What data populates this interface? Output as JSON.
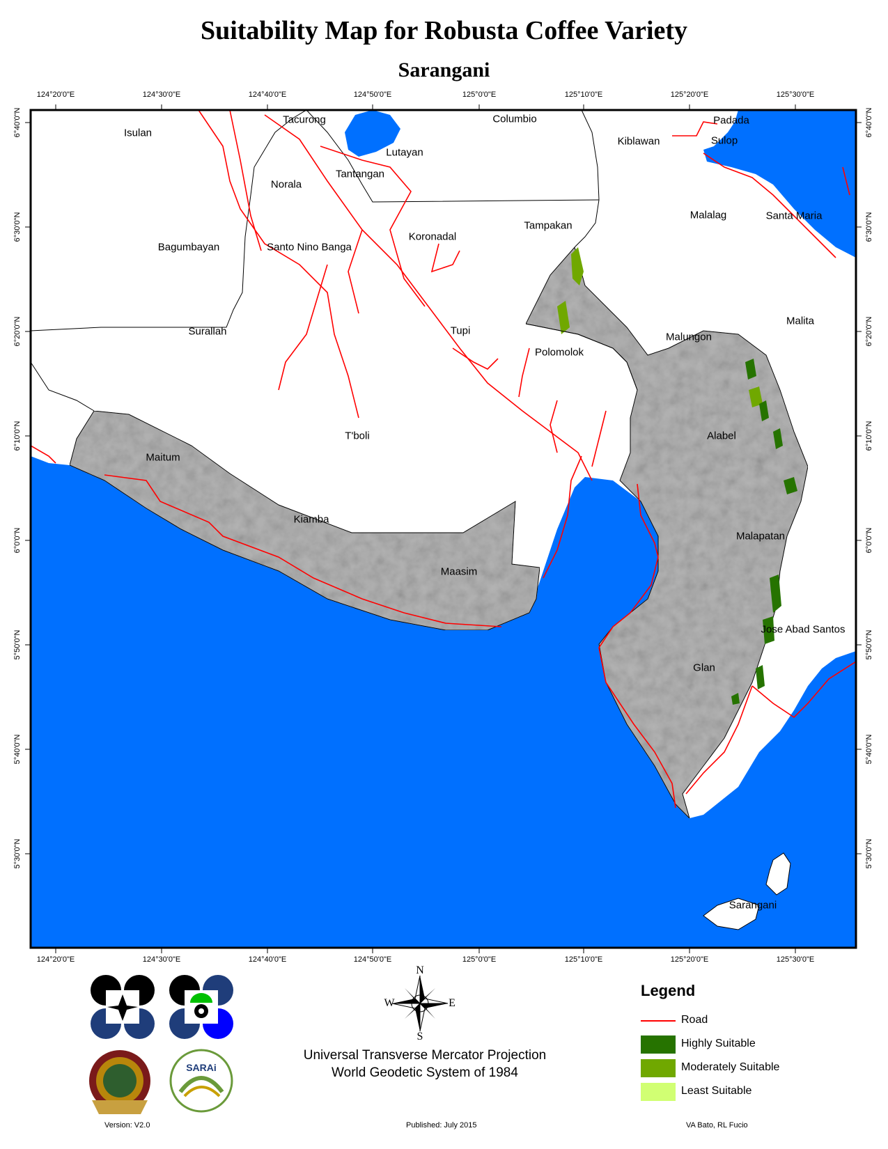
{
  "title": "Suitability Map for Robusta Coffee Variety",
  "subtitle": "Sarangani",
  "grid": {
    "longitudes": [
      "124°20'0\"E",
      "124°30'0\"E",
      "124°40'0\"E",
      "124°50'0\"E",
      "125°0'0\"E",
      "125°10'0\"E",
      "125°20'0\"E",
      "125°30'0\"E"
    ],
    "latitudes": [
      "6°40'0\"N",
      "6°30'0\"N",
      "6°20'0\"N",
      "6°10'0\"N",
      "6°0'0\"N",
      "5°50'0\"N",
      "5°40'0\"N",
      "5°30'0\"N"
    ]
  },
  "places": [
    {
      "name": "Tacurong"
    },
    {
      "name": "Columbio"
    },
    {
      "name": "Padada"
    },
    {
      "name": "Isulan"
    },
    {
      "name": "Kiblawan"
    },
    {
      "name": "Sulop"
    },
    {
      "name": "Lutayan"
    },
    {
      "name": "Tantangan"
    },
    {
      "name": "Norala"
    },
    {
      "name": "Malalag"
    },
    {
      "name": "Santa Maria"
    },
    {
      "name": "Tampakan"
    },
    {
      "name": "Koronadal"
    },
    {
      "name": "Bagumbayan"
    },
    {
      "name": "Santo Nino Banga"
    },
    {
      "name": "Malita"
    },
    {
      "name": "Surallah"
    },
    {
      "name": "Tupi"
    },
    {
      "name": "Malungon"
    },
    {
      "name": "Polomolok"
    },
    {
      "name": "T'boli"
    },
    {
      "name": "Alabel"
    },
    {
      "name": "Maitum"
    },
    {
      "name": "Kiamba"
    },
    {
      "name": "Malapatan"
    },
    {
      "name": "Maasim"
    },
    {
      "name": "Jose Abad Santos"
    },
    {
      "name": "Glan"
    },
    {
      "name": "Sarangani"
    }
  ],
  "compass": {
    "n": "N",
    "s": "S",
    "e": "E",
    "w": "W"
  },
  "legend": {
    "title": "Legend",
    "items": [
      {
        "label": "Road",
        "color": "#ff0000"
      },
      {
        "label": "Highly Suitable",
        "color": "#267300"
      },
      {
        "label": "Moderately Suitable",
        "color": "#70a800"
      },
      {
        "label": "Least Suitable",
        "color": "#d1ff73"
      }
    ]
  },
  "projection": {
    "line1": "Universal Transverse Mercator Projection",
    "line2": "World Geodetic System of 1984"
  },
  "footer": {
    "version": "Version: V2.0",
    "published": "Published: July 2015",
    "authors": "VA Bato, RL Fucio"
  },
  "colors": {
    "sea": "#0070ff",
    "province": "#b4b4b4",
    "road": "#ff0000"
  }
}
